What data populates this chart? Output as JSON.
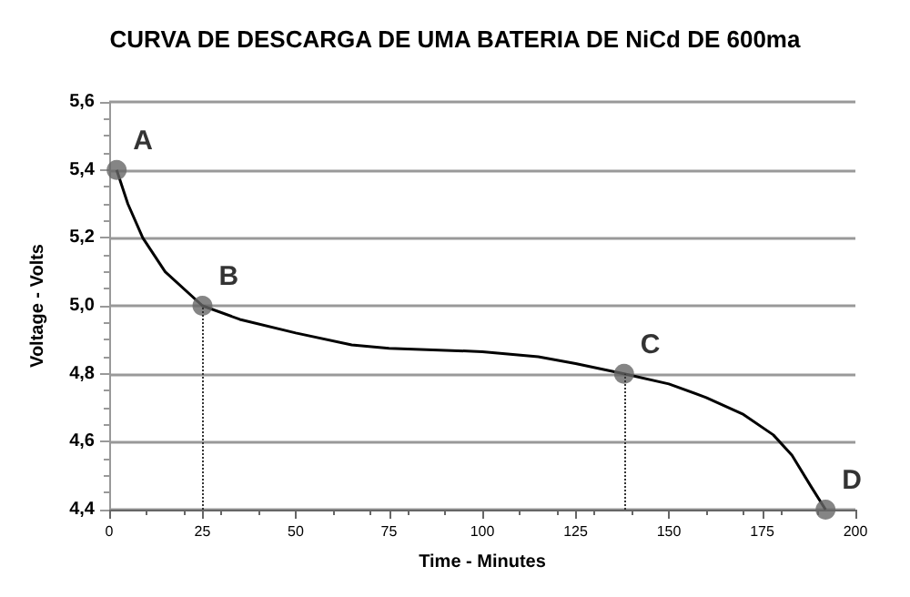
{
  "chart_data": {
    "type": "line",
    "title": "CURVA DE DESCARGA DE UMA BATERIA DE NiCd DE 600ma",
    "xlabel": "Time - Minutes",
    "ylabel": "Voltage - Volts",
    "series": [
      {
        "color": "#000000",
        "marker": "none",
        "x": [
          2,
          5,
          9,
          15,
          25,
          35,
          50,
          65,
          75,
          100,
          115,
          125,
          138,
          150,
          160,
          170,
          178,
          183,
          188,
          192
        ],
        "values": [
          5.4,
          5.3,
          5.2,
          5.1,
          5.0,
          4.96,
          4.92,
          4.885,
          4.875,
          4.865,
          4.85,
          4.83,
          4.8,
          4.77,
          4.73,
          4.68,
          4.62,
          4.56,
          4.47,
          4.4
        ]
      },
      {
        "type": "scatter",
        "color": "#666666",
        "marker": "circle",
        "x": [
          2,
          25,
          138,
          192
        ],
        "values": [
          5.4,
          5.0,
          4.8,
          4.4
        ]
      }
    ],
    "annotations": [
      {
        "text": "A",
        "x": 2,
        "y": 5.4
      },
      {
        "text": "B",
        "x": 25,
        "y": 5.0
      },
      {
        "text": "C",
        "x": 138,
        "y": 4.8
      },
      {
        "text": "D",
        "x": 192,
        "y": 4.4
      }
    ],
    "ref_lines": [
      {
        "axis": "x",
        "value": 25,
        "line_style": "dotted",
        "color": "#333333"
      },
      {
        "axis": "x",
        "value": 138,
        "line_style": "dotted",
        "color": "#333333"
      }
    ],
    "xlim": [
      0,
      200
    ],
    "xticks": [
      0,
      25,
      50,
      75,
      100,
      125,
      150,
      175,
      200
    ],
    "ylim": [
      4.4,
      5.6
    ],
    "yticks": [
      {
        "value": 4.4,
        "label": "4,4"
      },
      {
        "value": 4.6,
        "label": "4,6"
      },
      {
        "value": 4.8,
        "label": "4,8"
      },
      {
        "value": 5.0,
        "label": "5,0"
      },
      {
        "value": 5.2,
        "label": "5,2"
      },
      {
        "value": 5.4,
        "label": "5,4"
      },
      {
        "value": 5.6,
        "label": "5,6"
      }
    ],
    "grid": "y"
  }
}
